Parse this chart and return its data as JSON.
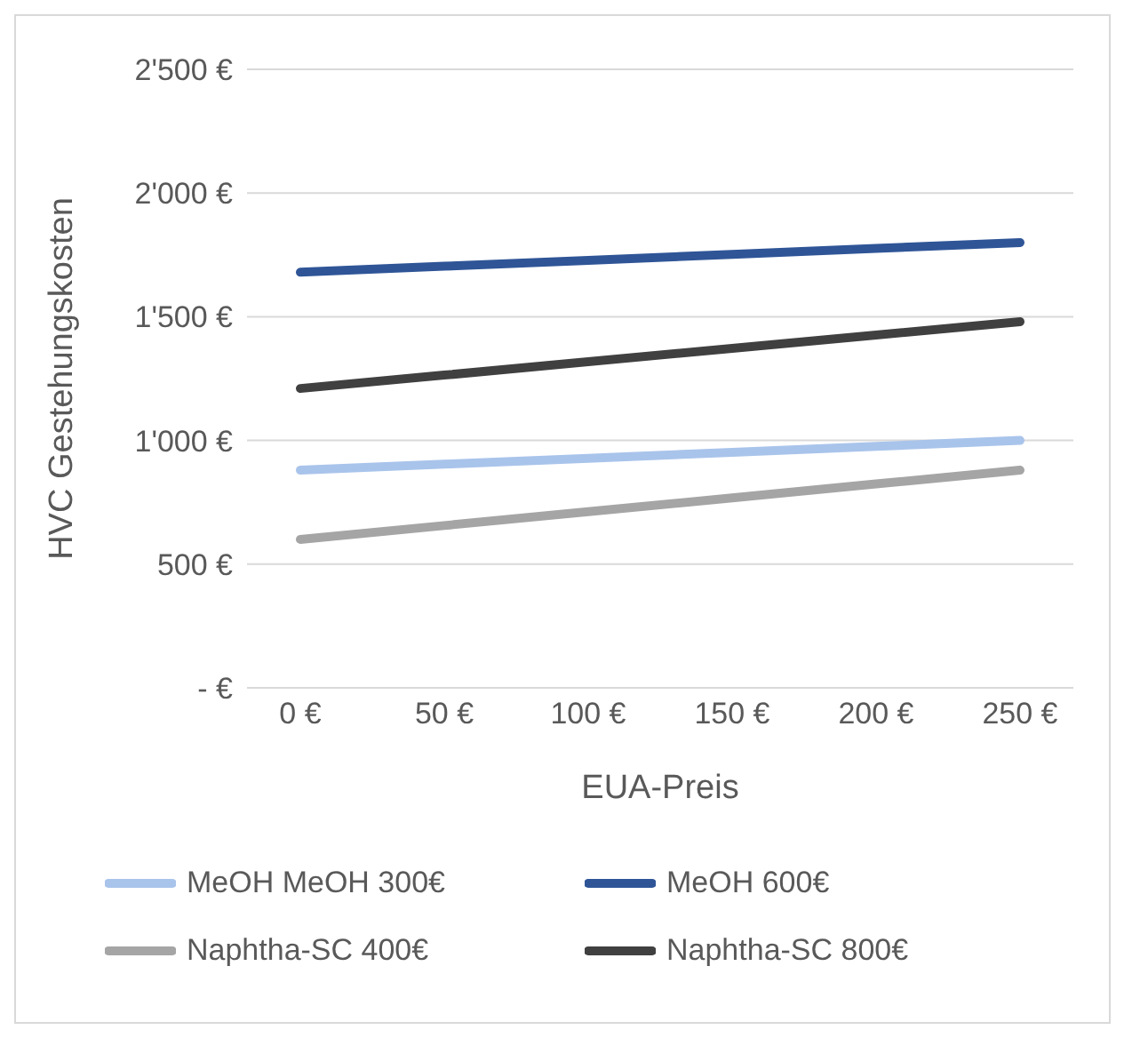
{
  "chart_data": {
    "type": "line",
    "xlabel": "EUA-Preis",
    "ylabel": "HVC Gestehungskosten",
    "categories": [
      "0 €",
      "50 €",
      "100 €",
      "150 €",
      "200 €",
      "250 €"
    ],
    "series": [
      {
        "name": "MeOH MeOH 300€",
        "color": "#a9c4eb",
        "values": [
          880,
          904,
          928,
          952,
          976,
          1000
        ]
      },
      {
        "name": "MeOH 600€",
        "color": "#2f5597",
        "values": [
          1680,
          1704,
          1728,
          1752,
          1776,
          1800
        ]
      },
      {
        "name": "Naphtha-SC 400€",
        "color": "#a5a5a5",
        "values": [
          600,
          656,
          712,
          768,
          824,
          880
        ]
      },
      {
        "name": "Naphtha-SC 800€",
        "color": "#404040",
        "values": [
          1210,
          1264,
          1318,
          1372,
          1426,
          1480
        ]
      }
    ],
    "ylim": [
      0,
      2500
    ],
    "yticks": [
      {
        "value": 0,
        "label": "-   €"
      },
      {
        "value": 500,
        "label": "500 €"
      },
      {
        "value": 1000,
        "label": "1'000 €"
      },
      {
        "value": 1500,
        "label": "1'500 €"
      },
      {
        "value": 2000,
        "label": "2'000 €"
      },
      {
        "value": 2500,
        "label": "2'500 €"
      }
    ],
    "grid": "y",
    "legend": "bottom",
    "marker": "none",
    "line_style": "solid"
  }
}
